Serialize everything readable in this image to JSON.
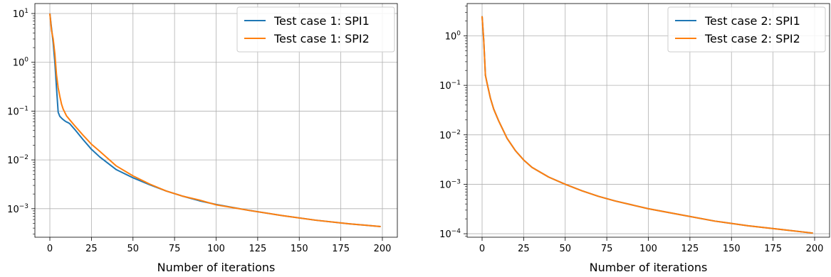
{
  "chart_data": [
    {
      "type": "line",
      "xlabel": "Number of iterations",
      "ylabel": "",
      "xlim": [
        -9,
        209
      ],
      "ylim": [
        0.00026,
        16
      ],
      "yscale": "log",
      "grid": true,
      "legend_position": "top-right",
      "xticks": [
        0,
        25,
        50,
        75,
        100,
        125,
        150,
        175,
        200
      ],
      "yticks": [
        {
          "value": 10,
          "base": "10",
          "exp": "1"
        },
        {
          "value": 1,
          "base": "10",
          "exp": "0"
        },
        {
          "value": 0.1,
          "base": "10",
          "exp": "−1"
        },
        {
          "value": 0.01,
          "base": "10",
          "exp": "−2"
        },
        {
          "value": 0.001,
          "base": "10",
          "exp": "−3"
        }
      ],
      "series": [
        {
          "name": "Test case 1: SPI1",
          "color": "#1f77b4",
          "x": [
            0,
            1,
            2,
            3,
            4,
            5,
            6,
            7,
            8,
            9,
            10,
            11,
            12,
            15,
            20,
            25,
            30,
            40,
            50,
            60,
            70,
            80,
            90,
            100,
            120,
            140,
            160,
            180,
            199
          ],
          "y": [
            10,
            5,
            2.5,
            1.0,
            0.3,
            0.095,
            0.078,
            0.072,
            0.067,
            0.063,
            0.06,
            0.058,
            0.055,
            0.042,
            0.026,
            0.0165,
            0.0115,
            0.0063,
            0.0043,
            0.0031,
            0.0023,
            0.0018,
            0.00145,
            0.00122,
            0.00092,
            0.00072,
            0.00058,
            0.00049,
            0.00043
          ]
        },
        {
          "name": "Test case 1: SPI2",
          "color": "#ff7f0e",
          "x": [
            0,
            1,
            2,
            3,
            4,
            5,
            6,
            7,
            8,
            10,
            12,
            15,
            20,
            25,
            30,
            40,
            50,
            60,
            70,
            80,
            90,
            100,
            120,
            140,
            160,
            180,
            199
          ],
          "y": [
            10,
            4.5,
            3.0,
            1.5,
            0.55,
            0.3,
            0.2,
            0.14,
            0.11,
            0.08,
            0.066,
            0.05,
            0.032,
            0.021,
            0.015,
            0.0075,
            0.0047,
            0.0032,
            0.0023,
            0.0018,
            0.0015,
            0.0012,
            0.00092,
            0.00072,
            0.00058,
            0.00049,
            0.00043
          ]
        }
      ]
    },
    {
      "type": "line",
      "xlabel": "Number of iterations",
      "ylabel": "",
      "xlim": [
        -9,
        209
      ],
      "ylim": [
        8.5e-05,
        4.5
      ],
      "yscale": "log",
      "grid": true,
      "legend_position": "top-right",
      "xticks": [
        0,
        25,
        50,
        75,
        100,
        125,
        150,
        175,
        200
      ],
      "yticks": [
        {
          "value": 1,
          "base": "10",
          "exp": "0"
        },
        {
          "value": 0.1,
          "base": "10",
          "exp": "−1"
        },
        {
          "value": 0.01,
          "base": "10",
          "exp": "−2"
        },
        {
          "value": 0.001,
          "base": "10",
          "exp": "−3"
        },
        {
          "value": 0.0001,
          "base": "10",
          "exp": "−4"
        }
      ],
      "series": [
        {
          "name": "Test case 2: SPI1",
          "color": "#1f77b4",
          "x": [
            0,
            1,
            2,
            3,
            5,
            7,
            10,
            15,
            20,
            25,
            30,
            40,
            50,
            60,
            70,
            80,
            100,
            120,
            140,
            160,
            180,
            199
          ],
          "y": [
            2.5,
            0.8,
            0.16,
            0.11,
            0.055,
            0.033,
            0.019,
            0.0085,
            0.0048,
            0.0031,
            0.0022,
            0.0014,
            0.001,
            0.00074,
            0.00057,
            0.00046,
            0.00032,
            0.00024,
            0.00018,
            0.000145,
            0.000122,
            0.000103
          ]
        },
        {
          "name": "Test case 2: SPI2",
          "color": "#ff7f0e",
          "x": [
            0,
            1,
            2,
            3,
            5,
            7,
            10,
            15,
            20,
            25,
            30,
            40,
            50,
            60,
            70,
            80,
            100,
            120,
            140,
            160,
            180,
            199
          ],
          "y": [
            2.5,
            0.8,
            0.16,
            0.11,
            0.055,
            0.033,
            0.019,
            0.0085,
            0.0048,
            0.0031,
            0.0022,
            0.0014,
            0.001,
            0.00074,
            0.00057,
            0.00046,
            0.00032,
            0.00024,
            0.00018,
            0.000145,
            0.000122,
            0.000103
          ]
        }
      ]
    }
  ]
}
